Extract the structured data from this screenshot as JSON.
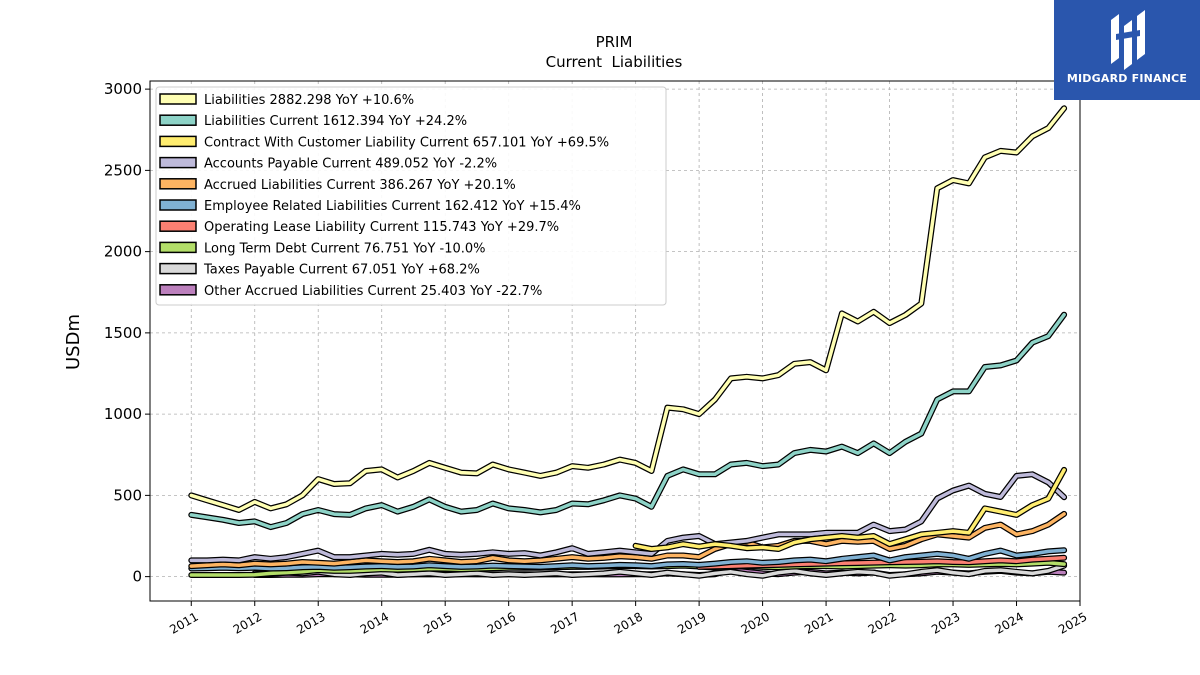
{
  "chart_data": {
    "type": "line",
    "title": "PRIM",
    "subtitle": "Current  Liabilities",
    "ylabel": "USDm",
    "ylim": [
      -150,
      3050
    ],
    "xlim": [
      2010.35,
      2025.0
    ],
    "yticks": [
      0,
      500,
      1000,
      1500,
      2000,
      2500,
      3000
    ],
    "xticks": [
      2011,
      2012,
      2013,
      2014,
      2015,
      2016,
      2017,
      2018,
      2019,
      2020,
      2021,
      2022,
      2023,
      2024,
      2025
    ],
    "grid": true,
    "legend_position": "top-left",
    "series": [
      {
        "name": "Liabilities",
        "legend": "Liabilities  2882.298 YoY +10.6%",
        "color": "#ffffb3",
        "x": [
          2011.0,
          2011.25,
          2011.5,
          2011.75,
          2012.0,
          2012.25,
          2012.5,
          2012.75,
          2013.0,
          2013.25,
          2013.5,
          2013.75,
          2014.0,
          2014.25,
          2014.5,
          2014.75,
          2015.0,
          2015.25,
          2015.5,
          2015.75,
          2016.0,
          2016.25,
          2016.5,
          2016.75,
          2017.0,
          2017.25,
          2017.5,
          2017.75,
          2018.0,
          2018.25,
          2018.5,
          2018.75,
          2019.0,
          2019.25,
          2019.5,
          2019.75,
          2020.0,
          2020.25,
          2020.5,
          2020.75,
          2021.0,
          2021.25,
          2021.5,
          2021.75,
          2022.0,
          2022.25,
          2022.5,
          2022.75,
          2023.0,
          2023.25,
          2023.5,
          2023.75,
          2024.0,
          2024.25,
          2024.5,
          2024.75
        ],
        "y": [
          500,
          470,
          440,
          410,
          460,
          420,
          445,
          500,
          600,
          570,
          575,
          650,
          660,
          610,
          650,
          700,
          670,
          640,
          635,
          690,
          660,
          640,
          620,
          640,
          680,
          670,
          690,
          720,
          700,
          650,
          1040,
          1030,
          1000,
          1090,
          1220,
          1230,
          1220,
          1240,
          1310,
          1320,
          1270,
          1620,
          1570,
          1630,
          1560,
          1610,
          1680,
          2390,
          2440,
          2420,
          2580,
          2620,
          2610,
          2710,
          2760,
          2882
        ]
      },
      {
        "name": "Liabilities Current",
        "legend": "Liabilities Current  1612.394 YoY +24.2%",
        "color": "#8dd3c7",
        "x": [
          2011.0,
          2011.25,
          2011.5,
          2011.75,
          2012.0,
          2012.25,
          2012.5,
          2012.75,
          2013.0,
          2013.25,
          2013.5,
          2013.75,
          2014.0,
          2014.25,
          2014.5,
          2014.75,
          2015.0,
          2015.25,
          2015.5,
          2015.75,
          2016.0,
          2016.25,
          2016.5,
          2016.75,
          2017.0,
          2017.25,
          2017.5,
          2017.75,
          2018.0,
          2018.25,
          2018.5,
          2018.75,
          2019.0,
          2019.25,
          2019.5,
          2019.75,
          2020.0,
          2020.25,
          2020.5,
          2020.75,
          2021.0,
          2021.25,
          2021.5,
          2021.75,
          2022.0,
          2022.25,
          2022.5,
          2022.75,
          2023.0,
          2023.25,
          2023.5,
          2023.75,
          2024.0,
          2024.25,
          2024.5,
          2024.75
        ],
        "y": [
          380,
          365,
          350,
          330,
          340,
          305,
          330,
          385,
          410,
          385,
          380,
          420,
          440,
          400,
          430,
          475,
          430,
          400,
          410,
          450,
          420,
          410,
          395,
          410,
          450,
          445,
          470,
          500,
          480,
          430,
          620,
          660,
          630,
          630,
          690,
          700,
          680,
          690,
          760,
          780,
          770,
          800,
          760,
          820,
          760,
          830,
          880,
          1090,
          1140,
          1140,
          1290,
          1300,
          1330,
          1440,
          1480,
          1612
        ]
      },
      {
        "name": "Contract With Customer Liability Current",
        "legend": "Contract With Customer Liability Current  657.101 YoY +69.5%",
        "color": "#ffed6f",
        "x": [
          2018.0,
          2018.25,
          2018.5,
          2018.75,
          2019.0,
          2019.25,
          2019.5,
          2019.75,
          2020.0,
          2020.25,
          2020.5,
          2020.75,
          2021.0,
          2021.25,
          2021.5,
          2021.75,
          2022.0,
          2022.25,
          2022.5,
          2022.75,
          2023.0,
          2023.25,
          2023.5,
          2023.75,
          2024.0,
          2024.25,
          2024.5,
          2024.75
        ],
        "y": [
          190,
          170,
          180,
          200,
          185,
          200,
          190,
          175,
          180,
          170,
          210,
          230,
          240,
          250,
          240,
          250,
          200,
          230,
          260,
          270,
          280,
          270,
          420,
          400,
          380,
          440,
          480,
          657
        ]
      },
      {
        "name": "Accounts Payable Current",
        "legend": "Accounts Payable Current  489.052 YoY -2.2%",
        "color": "#bebada",
        "x": [
          2011.0,
          2011.25,
          2011.5,
          2011.75,
          2012.0,
          2012.25,
          2012.5,
          2012.75,
          2013.0,
          2013.25,
          2013.5,
          2013.75,
          2014.0,
          2014.25,
          2014.5,
          2014.75,
          2015.0,
          2015.25,
          2015.5,
          2015.75,
          2016.0,
          2016.25,
          2016.5,
          2016.75,
          2017.0,
          2017.25,
          2017.5,
          2017.75,
          2018.0,
          2018.25,
          2018.5,
          2018.75,
          2019.0,
          2019.25,
          2019.5,
          2019.75,
          2020.0,
          2020.25,
          2020.5,
          2020.75,
          2021.0,
          2021.25,
          2021.5,
          2021.75,
          2022.0,
          2022.25,
          2022.5,
          2022.75,
          2023.0,
          2023.25,
          2023.5,
          2023.75,
          2024.0,
          2024.25,
          2024.5,
          2024.75
        ],
        "y": [
          100,
          100,
          105,
          100,
          120,
          110,
          120,
          140,
          160,
          120,
          120,
          130,
          140,
          135,
          140,
          165,
          140,
          135,
          140,
          150,
          140,
          145,
          130,
          150,
          175,
          140,
          150,
          160,
          150,
          140,
          220,
          240,
          250,
          200,
          210,
          220,
          240,
          260,
          260,
          260,
          270,
          270,
          270,
          320,
          280,
          290,
          340,
          480,
          530,
          560,
          510,
          490,
          620,
          630,
          580,
          489
        ]
      },
      {
        "name": "Accrued Liabilities Current",
        "legend": "Accrued Liabilities Current  386.267 YoY +20.1%",
        "color": "#fdb462",
        "x": [
          2011.0,
          2011.25,
          2011.5,
          2011.75,
          2012.0,
          2012.25,
          2012.5,
          2012.75,
          2013.0,
          2013.25,
          2013.5,
          2013.75,
          2014.0,
          2014.25,
          2014.5,
          2014.75,
          2015.0,
          2015.25,
          2015.5,
          2015.75,
          2016.0,
          2016.25,
          2016.5,
          2016.75,
          2017.0,
          2017.25,
          2017.5,
          2017.75,
          2018.0,
          2018.25,
          2018.5,
          2018.75,
          2019.0,
          2019.25,
          2019.5,
          2019.75,
          2020.0,
          2020.25,
          2020.5,
          2020.75,
          2021.0,
          2021.25,
          2021.5,
          2021.75,
          2022.0,
          2022.25,
          2022.5,
          2022.75,
          2023.0,
          2023.25,
          2023.5,
          2023.75,
          2024.0,
          2024.25,
          2024.5,
          2024.75
        ],
        "y": [
          65,
          70,
          75,
          70,
          80,
          75,
          80,
          90,
          85,
          80,
          90,
          100,
          95,
          90,
          95,
          110,
          100,
          90,
          95,
          115,
          100,
          95,
          100,
          110,
          120,
          110,
          115,
          125,
          120,
          110,
          130,
          130,
          120,
          170,
          200,
          210,
          180,
          190,
          220,
          220,
          200,
          220,
          215,
          220,
          170,
          190,
          230,
          260,
          250,
          240,
          300,
          320,
          260,
          280,
          320,
          386
        ]
      },
      {
        "name": "Employee Related Liabilities Current",
        "legend": "Employee Related Liabilities Current  162.412 YoY +15.4%",
        "color": "#80b1d3",
        "x": [
          2011.0,
          2011.25,
          2011.5,
          2011.75,
          2012.0,
          2012.25,
          2012.5,
          2012.75,
          2013.0,
          2013.25,
          2013.5,
          2013.75,
          2014.0,
          2014.25,
          2014.5,
          2014.75,
          2015.0,
          2015.25,
          2015.5,
          2015.75,
          2016.0,
          2016.25,
          2016.5,
          2016.75,
          2017.0,
          2017.25,
          2017.5,
          2017.75,
          2018.0,
          2018.25,
          2018.5,
          2018.75,
          2019.0,
          2019.25,
          2019.5,
          2019.75,
          2020.0,
          2020.25,
          2020.5,
          2020.75,
          2021.0,
          2021.25,
          2021.5,
          2021.75,
          2022.0,
          2022.25,
          2022.5,
          2022.75,
          2023.0,
          2023.25,
          2023.5,
          2023.75,
          2024.0,
          2024.25,
          2024.5,
          2024.75
        ],
        "y": [
          50,
          52,
          55,
          52,
          55,
          50,
          52,
          58,
          60,
          55,
          58,
          62,
          65,
          60,
          62,
          70,
          65,
          60,
          62,
          68,
          65,
          62,
          60,
          65,
          70,
          65,
          68,
          72,
          70,
          65,
          75,
          78,
          72,
          80,
          90,
          95,
          85,
          90,
          100,
          105,
          95,
          110,
          120,
          130,
          100,
          120,
          130,
          140,
          130,
          110,
          140,
          160,
          130,
          140,
          155,
          162
        ]
      },
      {
        "name": "Operating Lease Liability Current",
        "legend": "Operating Lease Liability Current  115.743 YoY +29.7%",
        "color": "#fb8072",
        "x": [
          2019.0,
          2019.25,
          2019.5,
          2019.75,
          2020.0,
          2020.25,
          2020.5,
          2020.75,
          2021.0,
          2021.25,
          2021.5,
          2021.75,
          2022.0,
          2022.25,
          2022.5,
          2022.75,
          2023.0,
          2023.25,
          2023.5,
          2023.75,
          2024.0,
          2024.25,
          2024.5,
          2024.75
        ],
        "y": [
          60,
          62,
          65,
          68,
          70,
          72,
          75,
          78,
          80,
          82,
          84,
          86,
          88,
          90,
          92,
          95,
          90,
          88,
          95,
          100,
          95,
          105,
          110,
          116
        ]
      },
      {
        "name": "Long Term Debt Current",
        "legend": "Long Term Debt Current  76.751 YoY -10.0%",
        "color": "#b3de69",
        "x": [
          2011.0,
          2011.25,
          2011.5,
          2011.75,
          2012.0,
          2012.25,
          2012.5,
          2012.75,
          2013.0,
          2013.25,
          2013.5,
          2013.75,
          2014.0,
          2014.25,
          2014.5,
          2014.75,
          2015.0,
          2015.25,
          2015.5,
          2015.75,
          2016.0,
          2016.25,
          2016.5,
          2016.75,
          2017.0,
          2017.25,
          2017.5,
          2017.75,
          2018.0,
          2018.25,
          2018.5,
          2018.75,
          2019.0,
          2019.25,
          2019.5,
          2019.75,
          2020.0,
          2020.25,
          2020.5,
          2020.75,
          2021.0,
          2021.25,
          2021.5,
          2021.75,
          2022.0,
          2022.25,
          2022.5,
          2022.75,
          2023.0,
          2023.25,
          2023.5,
          2023.75,
          2024.0,
          2024.25,
          2024.5,
          2024.75
        ],
        "y": [
          10,
          10,
          10,
          10,
          12,
          20,
          25,
          30,
          40,
          35,
          35,
          40,
          45,
          42,
          45,
          50,
          48,
          45,
          48,
          52,
          55,
          55,
          55,
          58,
          60,
          60,
          62,
          65,
          65,
          62,
          65,
          68,
          62,
          55,
          60,
          65,
          60,
          58,
          62,
          65,
          65,
          62,
          65,
          68,
          70,
          68,
          70,
          75,
          75,
          72,
          75,
          78,
          75,
          80,
          85,
          77
        ]
      },
      {
        "name": "Taxes Payable Current",
        "legend": "Taxes Payable Current  67.051 YoY +68.2%",
        "color": "#d9d9d9",
        "x": [
          2012.0,
          2012.25,
          2012.5,
          2012.75,
          2013.0,
          2013.25,
          2013.5,
          2013.75,
          2014.0,
          2014.25,
          2014.5,
          2014.75,
          2015.0,
          2015.25,
          2015.5,
          2015.75,
          2016.0,
          2016.25,
          2016.5,
          2016.75,
          2017.0,
          2017.25,
          2017.5,
          2017.75,
          2018.0,
          2018.25,
          2018.5,
          2018.75,
          2019.0,
          2019.25,
          2019.5,
          2019.75,
          2020.0,
          2020.25,
          2020.5,
          2020.75,
          2021.0,
          2021.25,
          2021.5,
          2021.75,
          2022.0,
          2022.25,
          2022.5,
          2022.75,
          2023.0,
          2023.25,
          2023.5,
          2023.75,
          2024.0,
          2024.25,
          2024.5,
          2024.75
        ],
        "y": [
          20,
          15,
          25,
          20,
          30,
          15,
          10,
          20,
          25,
          10,
          15,
          20,
          10,
          15,
          20,
          10,
          15,
          10,
          15,
          20,
          10,
          15,
          20,
          30,
          20,
          10,
          25,
          15,
          5,
          20,
          30,
          15,
          5,
          25,
          35,
          20,
          10,
          20,
          30,
          25,
          5,
          15,
          30,
          40,
          25,
          15,
          35,
          40,
          30,
          20,
          35,
          67
        ]
      },
      {
        "name": "Other Accrued Liabilities Current",
        "legend": "Other Accrued Liabilities Current  25.403 YoY -22.7%",
        "color": "#bc80bd",
        "x": [
          2012.0,
          2012.25,
          2012.5,
          2012.75,
          2013.0,
          2013.25,
          2013.5,
          2013.75,
          2014.0,
          2014.25,
          2014.5,
          2014.75,
          2015.0,
          2015.25,
          2015.5,
          2015.75,
          2016.0,
          2016.25,
          2016.5,
          2016.75,
          2017.0,
          2017.25,
          2017.5,
          2017.75,
          2018.0,
          2018.25,
          2018.5,
          2018.75,
          2019.0,
          2019.25,
          2019.5,
          2019.75,
          2020.0,
          2020.25,
          2020.5,
          2020.75,
          2021.0,
          2021.25,
          2021.5,
          2021.75,
          2022.0,
          2022.25,
          2022.5,
          2022.75,
          2023.0,
          2023.25,
          2023.5,
          2023.75,
          2024.0,
          2024.25,
          2024.5,
          2024.75
        ],
        "y": [
          10,
          10,
          12,
          12,
          15,
          15,
          15,
          12,
          12,
          12,
          14,
          14,
          15,
          15,
          14,
          14,
          15,
          15,
          14,
          14,
          15,
          15,
          14,
          14,
          15,
          15,
          20,
          15,
          10,
          15,
          40,
          30,
          20,
          15,
          25,
          30,
          20,
          25,
          20,
          25,
          10,
          15,
          20,
          30,
          25,
          20,
          30,
          35,
          25,
          20,
          30,
          25
        ]
      }
    ]
  },
  "logo": {
    "text": "MIDGARD FINANCE",
    "icon": "midgard-logo-icon"
  }
}
